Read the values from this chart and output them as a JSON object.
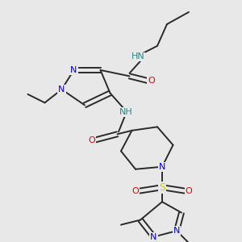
{
  "bg_color": "#e8e8e8",
  "bond_color": "#2a2a2a",
  "bond_width": 1.4,
  "atoms": {
    "N_blue": "#0000ee",
    "O_red": "#ee0000",
    "S_yellow": "#cccc00",
    "NH_teal": "#2a8a8a",
    "C_black": "#2a2a2a"
  },
  "font_size": 8.0,
  "xlim": [
    0,
    10
  ],
  "ylim": [
    0,
    10
  ]
}
